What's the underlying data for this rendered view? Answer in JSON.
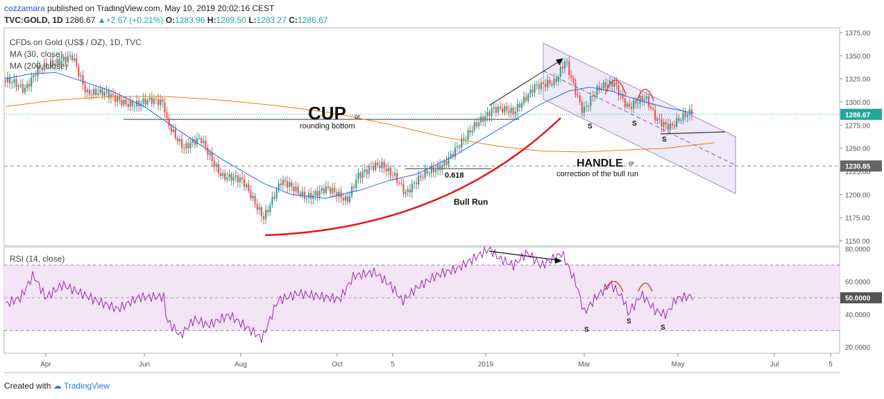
{
  "header": {
    "author": "cozzamara",
    "published_text": "published on TradingView.com, May 10, 2019 20:02:16 CEST",
    "symbol": "TVC:GOLD, 1D",
    "last": "1286.67",
    "change": "+2.67 (+0.21%)",
    "o_label": "O:",
    "o": "1283.96",
    "h_label": "H:",
    "h": "1289.50",
    "l_label": "L:",
    "l": "1283.27",
    "c_label": "C:",
    "c": "1286.67"
  },
  "legend": {
    "title": "CFDs on Gold (US$ / OZ), 1D, TVC",
    "ma1": "MA (30, close)",
    "ma2": "MA (200, close)",
    "rsi": "RSI (14, close)"
  },
  "annotations": {
    "cup": "CUP",
    "cup_or": "or",
    "rounding": "rounding bottom",
    "fib": "0.618",
    "bull_run": "Bull Run",
    "handle": "HANDLE",
    "handle_or": "or",
    "correction": "correction of the bull run",
    "s": "S"
  },
  "footer": {
    "created_with": "Created with",
    "brand": "TradingView"
  },
  "colors": {
    "up": "#26a69a",
    "down": "#ef5350",
    "ma30": "#2962ff",
    "ma200": "#f57c00",
    "rsi": "#9c27b0",
    "channel": "#d1c4e9"
  },
  "chart_data": [
    {
      "type": "line",
      "title": "CFDs on Gold (US$ / OZ), 1D, TVC",
      "y_ticks": [
        "1375.00",
        "1350.00",
        "1325.00",
        "1300.00",
        "1275.00",
        "1250.00",
        "1225.00",
        "1200.00",
        "1175.00",
        "1150.00"
      ],
      "ylim": [
        1150,
        1375
      ],
      "price_labels": [
        "1286.67",
        "1230.85"
      ],
      "x_ticks": [
        "Apr",
        "Jun",
        "Aug",
        "Oct",
        "5",
        "2019",
        "Mar",
        "May",
        "Jul",
        "5"
      ],
      "series": [
        {
          "name": "MA (30, close)",
          "x": [
            "Mar 2018",
            "Apr 2018",
            "Jun 2018",
            "Aug 2018",
            "Oct 2018",
            "Dec 2018",
            "Jan 2019",
            "Mar 2019",
            "May 2019"
          ],
          "values": [
            1325,
            1330,
            1302,
            1222,
            1195,
            1232,
            1270,
            1310,
            1292
          ]
        },
        {
          "name": "MA (200, close)",
          "x": [
            "Mar 2018",
            "Jun 2018",
            "Aug 2018",
            "Oct 2018",
            "Dec 2018",
            "Feb 2019",
            "May 2019"
          ],
          "values": [
            1295,
            1305,
            1300,
            1284,
            1262,
            1248,
            1255
          ]
        }
      ]
    },
    {
      "type": "line",
      "title": "RSI (14, close)",
      "y_ticks": [
        "80.0000",
        "60.0000",
        "40.0000",
        "20.0000"
      ],
      "ylim": [
        20,
        80
      ],
      "band": [
        30,
        70
      ],
      "current": "50.0000",
      "x": [
        "Mar 2018",
        "Apr 2018",
        "Jun 2018",
        "Aug 2018",
        "Sep 2018",
        "Oct 2018",
        "Nov 2018",
        "Dec 2018",
        "Jan 2019",
        "Feb 2019",
        "Mar 2019",
        "Apr 2019",
        "May 2019"
      ],
      "values": [
        48,
        56,
        50,
        30,
        45,
        55,
        50,
        60,
        75,
        70,
        40,
        48,
        50
      ]
    }
  ]
}
